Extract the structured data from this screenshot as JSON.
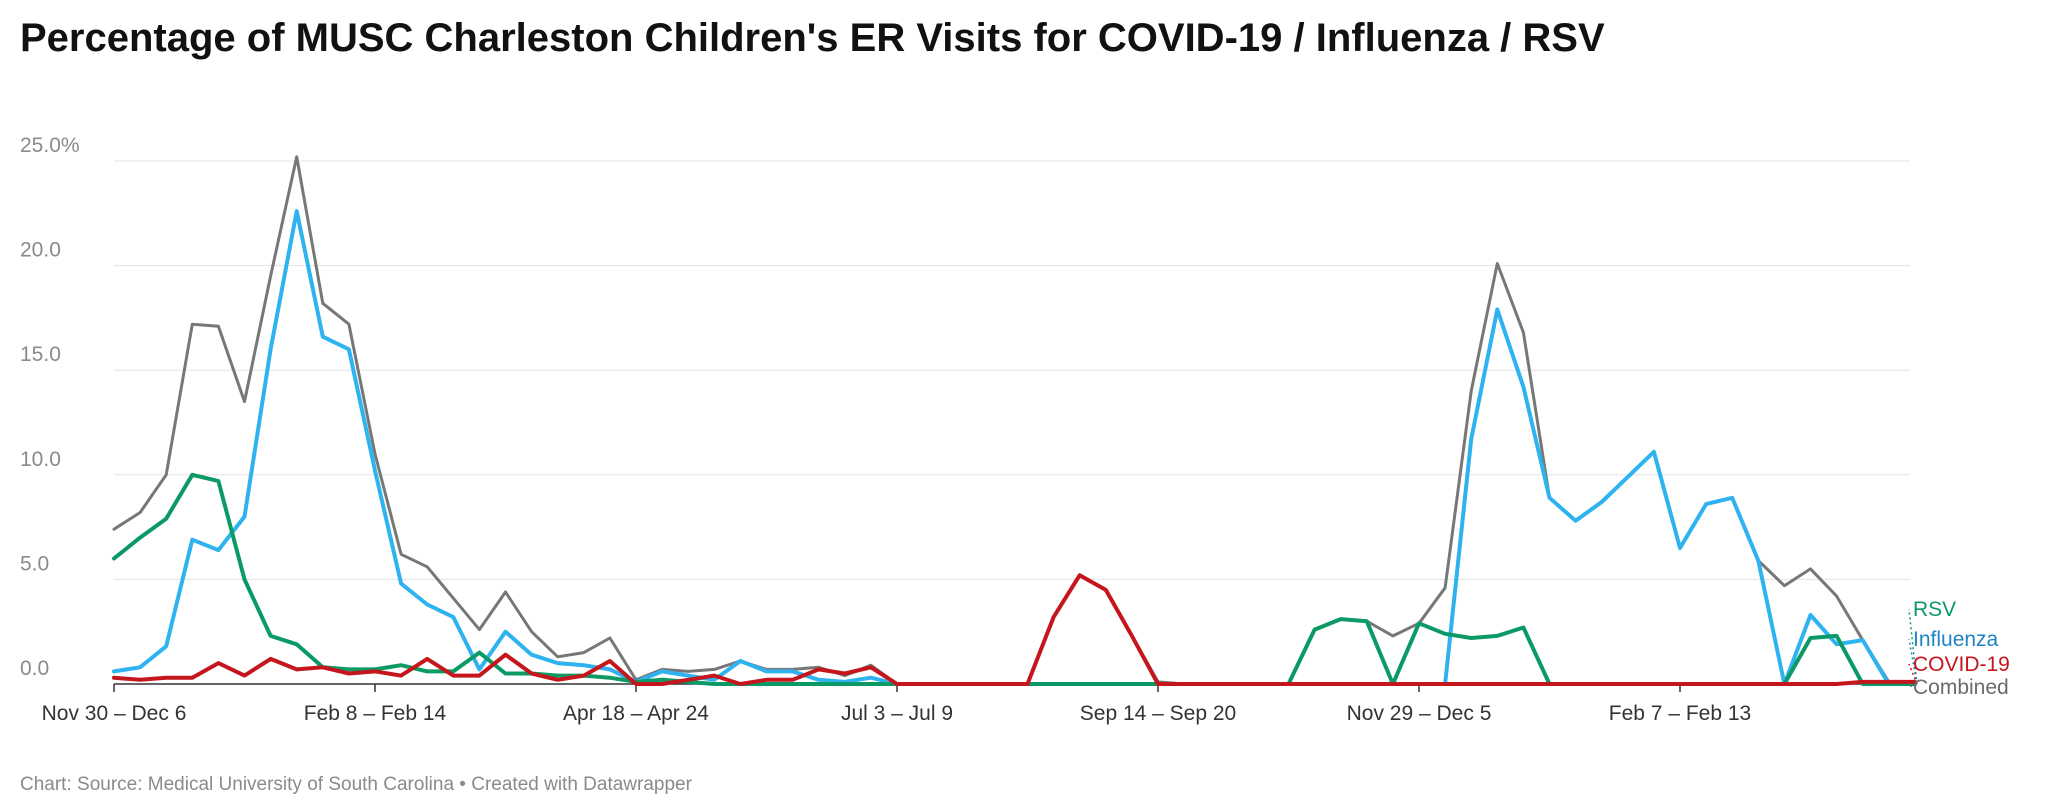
{
  "header": {
    "title": "Percentage of MUSC Charleston Children's ER Visits for COVID-19 / Influenza / RSV"
  },
  "footer": {
    "source": "Chart: Source: Medical University of South Carolina • Created with Datawrapper"
  },
  "chart_data": {
    "type": "line",
    "title": "Percentage of MUSC Charleston Children's ER Visits for COVID-19 / Influenza / RSV",
    "xlabel": "",
    "ylabel": "",
    "ylim": [
      0,
      25
    ],
    "grid": true,
    "legend": "right end of lines",
    "y_ticks": [
      {
        "value": 0,
        "label": "0.0"
      },
      {
        "value": 5,
        "label": "5.0"
      },
      {
        "value": 10,
        "label": "10.0"
      },
      {
        "value": 15,
        "label": "15.0"
      },
      {
        "value": 20,
        "label": "20.0"
      },
      {
        "value": 25,
        "label": "25.0%"
      }
    ],
    "x_ticks": [
      {
        "index": 0,
        "label": "Nov 30 – Dec 6"
      },
      {
        "index": 10,
        "label": "Feb 8 – Feb 14"
      },
      {
        "index": 20,
        "label": "Apr 18 – Apr 24"
      },
      {
        "index": 30,
        "label": "Jul 3 – Jul 9"
      },
      {
        "index": 40,
        "label": "Sep 14 – Sep 20"
      },
      {
        "index": 50,
        "label": "Nov 29 – Dec 5"
      },
      {
        "index": 60,
        "label": "Feb 7 – Feb 13"
      }
    ],
    "series": [
      {
        "name": "Combined",
        "color": "#777777",
        "width": 3,
        "values": [
          7.4,
          8.2,
          10.0,
          17.2,
          17.1,
          13.5,
          19.5,
          25.2,
          18.2,
          17.2,
          11.0,
          6.2,
          5.6,
          4.1,
          2.6,
          4.4,
          2.5,
          1.3,
          1.5,
          2.2,
          0.2,
          0.7,
          0.6,
          0.7,
          1.1,
          0.7,
          0.7,
          0.8,
          0.4,
          0.9,
          0,
          0,
          0,
          0,
          0,
          0,
          3.2,
          5.2,
          4.5,
          2.3,
          0.1,
          0,
          0,
          0,
          0,
          0,
          2.6,
          3.1,
          3.0,
          2.3,
          2.9,
          4.6,
          14.0,
          20.1,
          16.8,
          8.9,
          7.8,
          8.7,
          9.9,
          11.1,
          6.5,
          8.6,
          8.9,
          5.9,
          4.7,
          5.5,
          4.2,
          2.1,
          0.1,
          0.1
        ]
      },
      {
        "name": "Influenza",
        "color": "#2fb3f0",
        "width": 4,
        "values": [
          0.6,
          0.8,
          1.8,
          6.9,
          6.4,
          8.0,
          16.0,
          22.6,
          16.6,
          16.0,
          10.2,
          4.8,
          3.8,
          3.2,
          0.7,
          2.5,
          1.4,
          1.0,
          0.9,
          0.7,
          0.1,
          0.6,
          0.4,
          0.2,
          1.1,
          0.6,
          0.6,
          0.2,
          0.1,
          0.3,
          0,
          0,
          0,
          0,
          0,
          0,
          0,
          0,
          0,
          0,
          0,
          0,
          0,
          0,
          0,
          0,
          0,
          0,
          0,
          0,
          0,
          0,
          11.7,
          17.9,
          14.2,
          8.9,
          7.8,
          8.7,
          9.9,
          11.1,
          6.5,
          8.6,
          8.9,
          5.9,
          0,
          3.3,
          1.9,
          2.1,
          0,
          0
        ]
      },
      {
        "name": "RSV",
        "color": "#0b9a65",
        "width": 4,
        "values": [
          6.0,
          7.0,
          7.9,
          10.0,
          9.7,
          5.0,
          2.3,
          1.9,
          0.8,
          0.7,
          0.7,
          0.9,
          0.6,
          0.6,
          1.5,
          0.5,
          0.5,
          0.4,
          0.4,
          0.3,
          0.1,
          0.2,
          0.1,
          0,
          0,
          0,
          0,
          0,
          0,
          0,
          0,
          0,
          0,
          0,
          0,
          0,
          0,
          0,
          0,
          0,
          0,
          0,
          0,
          0,
          0,
          0,
          2.6,
          3.1,
          3.0,
          0,
          2.9,
          2.4,
          2.2,
          2.3,
          2.7,
          0,
          0,
          0,
          0,
          0,
          0,
          0,
          0,
          0,
          0,
          2.2,
          2.3,
          0,
          0,
          0
        ]
      },
      {
        "name": "COVID-19",
        "color": "#c4161c",
        "width": 4,
        "values": [
          0.3,
          0.2,
          0.3,
          0.3,
          1.0,
          0.4,
          1.2,
          0.7,
          0.8,
          0.5,
          0.6,
          0.4,
          1.2,
          0.4,
          0.4,
          1.4,
          0.5,
          0.2,
          0.4,
          1.1,
          0,
          0,
          0.2,
          0.4,
          0,
          0.2,
          0.2,
          0.7,
          0.5,
          0.8,
          0,
          0,
          0,
          0,
          0,
          0,
          3.2,
          5.2,
          4.5,
          2.3,
          0,
          0,
          0,
          0,
          0,
          0,
          0,
          0,
          0,
          0,
          0,
          0,
          0,
          0,
          0,
          0,
          0,
          0,
          0,
          0,
          0,
          0,
          0,
          0,
          0,
          0,
          0,
          0.1,
          0.1,
          0.1
        ]
      }
    ],
    "end_labels": [
      {
        "name": "RSV",
        "color": "#0b9a65"
      },
      {
        "name": "Influenza",
        "color": "#1f84c5"
      },
      {
        "name": "COVID-19",
        "color": "#c4161c"
      },
      {
        "name": "Combined",
        "color": "#6b6b6b"
      }
    ]
  }
}
